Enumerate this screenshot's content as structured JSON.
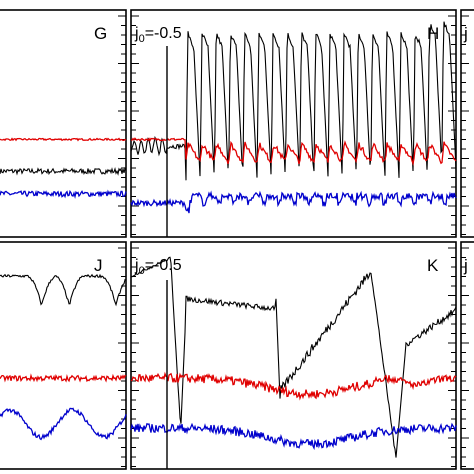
{
  "chart_data": {
    "type": "line",
    "layout": "2x3 panel grid (partially cropped)",
    "panels": [
      {
        "id": "G",
        "letter": "G",
        "annotation": "",
        "series": [
          {
            "color": "#000000",
            "baseline": 0.29,
            "pattern": "noisy-flat"
          },
          {
            "color": "#e00000",
            "baseline": 0.43,
            "pattern": "flat"
          },
          {
            "color": "#0000cc",
            "baseline": 0.19,
            "pattern": "noisy-flat"
          }
        ]
      },
      {
        "id": "H",
        "letter": "H",
        "annotation_main": "j",
        "annotation_sub": "0",
        "annotation_value": "=-0.5",
        "marker_line": true,
        "series": [
          {
            "color": "#000000",
            "baseline": 0.44,
            "pattern": "oscillating-spikes",
            "spikes": 19,
            "peak": 0.9,
            "trough": 0.25
          },
          {
            "color": "#e00000",
            "baseline": 0.43,
            "pattern": "dipping"
          },
          {
            "color": "#0000cc",
            "baseline": 0.15,
            "pattern": "noisy-flat"
          }
        ]
      },
      {
        "id": "I",
        "letter": "j",
        "annotation": "",
        "series": [
          {
            "color": "#000000",
            "baseline": 0.6,
            "pattern": "clipped"
          }
        ]
      },
      {
        "id": "J",
        "letter": "J",
        "annotation": "",
        "series": [
          {
            "color": "#000000",
            "baseline": 0.85,
            "pattern": "dips",
            "dips": 3
          },
          {
            "color": "#e00000",
            "baseline": 0.4,
            "pattern": "noisy-flat"
          },
          {
            "color": "#0000cc",
            "baseline": 0.2,
            "pattern": "waves"
          }
        ]
      },
      {
        "id": "K",
        "letter": "K",
        "annotation_main": "j",
        "annotation_sub": "0",
        "annotation_value": "=-0.5",
        "marker_line": true,
        "series": [
          {
            "color": "#000000",
            "baseline": 0.8,
            "pattern": "sawtooth-dips"
          },
          {
            "color": "#e00000",
            "baseline": 0.4,
            "pattern": "noisy-bump"
          },
          {
            "color": "#0000cc",
            "baseline": 0.18,
            "pattern": "noisy-bump"
          }
        ]
      },
      {
        "id": "L",
        "letter": "j",
        "annotation": "",
        "series": [
          {
            "color": "#000000",
            "baseline": 0.6,
            "pattern": "clipped"
          }
        ]
      }
    ]
  }
}
